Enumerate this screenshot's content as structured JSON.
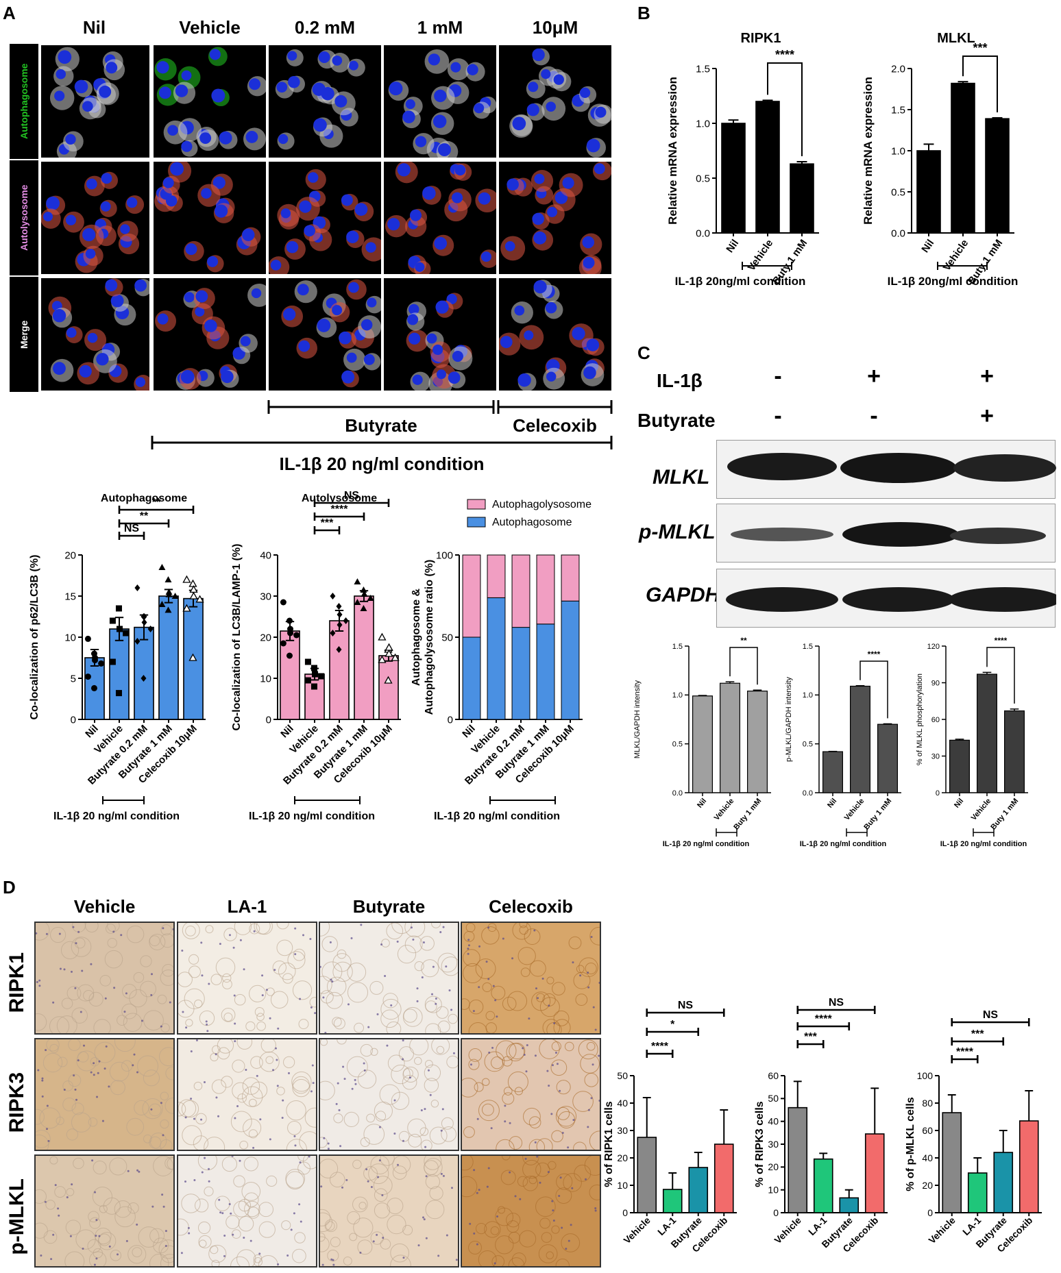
{
  "panels": {
    "a": "A",
    "b": "B",
    "c": "C",
    "d": "D"
  },
  "panelA": {
    "columns": [
      "Nil",
      "Vehicle",
      "0.2 mM",
      "1 mM",
      "10μM"
    ],
    "rows": [
      "Autophagosome",
      "Autolysosome",
      "Merge"
    ],
    "row_colors": [
      "#22c322",
      "#e38ce3",
      "#ffffff"
    ],
    "bracket_butyrate": "Butyrate",
    "bracket_celecoxib": "Celecoxib",
    "bracket_condition": "IL-1β 20 ng/ml condition"
  },
  "panelC": {
    "il1b_label": "IL-1β",
    "butyrate_label": "Butyrate",
    "il1b_signs": [
      "-",
      "+",
      "+"
    ],
    "butyrate_signs": [
      "-",
      "-",
      "+"
    ],
    "blot_labels": [
      "MLKL",
      "p-MLKL",
      "GAPDH"
    ]
  },
  "panelD": {
    "columns": [
      "Vehicle",
      "LA-1",
      "Butyrate",
      "Celecoxib"
    ],
    "rows": [
      "RIPK1",
      "RIPK3",
      "p-MLKL"
    ]
  },
  "chart_data": [
    {
      "id": "A1",
      "type": "bar",
      "title": "Autophagosome",
      "categories": [
        "Nil",
        "Vehicle",
        "Butyrate 0.2 mM",
        "Butyrate 1 mM",
        "Celecoxib 10μM"
      ],
      "values": [
        7.5,
        11.0,
        11.2,
        15.0,
        14.7
      ],
      "errors": [
        1.0,
        1.4,
        1.5,
        0.8,
        1.0
      ],
      "points": [
        [
          9.8,
          8.0,
          7.2,
          6.8,
          5.2,
          3.8,
          7.5
        ],
        [
          12.0,
          13.5,
          11.0,
          10.5,
          7.0,
          3.2,
          11.0
        ],
        [
          16.0,
          12.5,
          11.8,
          11.0,
          9.5,
          5.0,
          12.5
        ],
        [
          18.5,
          17.0,
          15.5,
          15.0,
          14.0,
          13.3,
          15.2
        ],
        [
          17.0,
          16.5,
          15.0,
          14.6,
          13.5,
          7.5,
          15.8
        ]
      ],
      "markers": [
        "circle",
        "square",
        "diamond",
        "triangle",
        "triangle-open"
      ],
      "ylabel": "Co-localization of p62/LC3B (%)",
      "ylim": [
        0,
        20
      ],
      "yticks": [
        0,
        5,
        10,
        15,
        20
      ],
      "color": "#4a90e2",
      "sig": [
        {
          "from": 1,
          "to": 2,
          "label": "NS"
        },
        {
          "from": 1,
          "to": 3,
          "label": "**"
        },
        {
          "from": 1,
          "to": 4,
          "label": "**"
        }
      ],
      "condition": "IL-1β 20 ng/ml condition"
    },
    {
      "id": "A2",
      "type": "bar",
      "title": "Autolysosome",
      "categories": [
        "Nil",
        "Vehicle",
        "Butyrate 0.2 mM",
        "Butyrate 1 mM",
        "Celecoxib 10μM"
      ],
      "values": [
        21.5,
        11.0,
        24.0,
        30.0,
        15.5
      ],
      "errors": [
        2.3,
        1.4,
        2.5,
        1.3,
        1.3
      ],
      "points": [
        [
          28.5,
          24.0,
          21.0,
          20.5,
          18.5,
          15.5,
          22.0
        ],
        [
          14.0,
          12.5,
          11.0,
          10.5,
          9.5,
          8.0,
          11.0
        ],
        [
          30.0,
          27.5,
          25.5,
          24.0,
          21.0,
          17.0,
          23.0
        ],
        [
          33.5,
          31.5,
          30.5,
          29.5,
          28.5,
          27.0,
          30.5
        ],
        [
          20.0,
          17.0,
          16.0,
          15.0,
          14.5,
          9.5,
          17.5
        ]
      ],
      "markers": [
        "circle",
        "square",
        "diamond",
        "triangle",
        "triangle-open"
      ],
      "ylabel": "Co-localization of LC3B/LAMP-1 (%)",
      "ylim": [
        0,
        40
      ],
      "yticks": [
        0,
        10,
        20,
        30,
        40
      ],
      "color": "#f19ec2",
      "sig": [
        {
          "from": 1,
          "to": 2,
          "label": "***"
        },
        {
          "from": 1,
          "to": 3,
          "label": "****"
        },
        {
          "from": 1,
          "to": 4,
          "label": "NS"
        }
      ],
      "condition": "IL-1β 20 ng/ml condition"
    },
    {
      "id": "A3",
      "type": "bar",
      "categories": [
        "Nil",
        "Vehicle",
        "Butyrate 0.2 mM",
        "Butyrate 1 mM",
        "Celecoxib 10μM"
      ],
      "series": [
        {
          "name": "Autophagosome",
          "values": [
            50,
            74,
            56,
            58,
            72
          ],
          "color": "#4a90e2"
        },
        {
          "name": "Autophagolysosome",
          "values": [
            50,
            26,
            44,
            42,
            28
          ],
          "color": "#f19ec2"
        }
      ],
      "ylabel": "Autophagosome & Autophagolysosome ratio (%)",
      "ylim": [
        0,
        100
      ],
      "yticks": [
        0,
        50,
        100
      ],
      "condition": "IL-1β 20 ng/ml condition"
    },
    {
      "id": "B1",
      "type": "bar",
      "title": "RIPK1",
      "categories": [
        "Nil",
        "Vehicle",
        "Buty 1 mM"
      ],
      "values": [
        1.0,
        1.2,
        0.63
      ],
      "errors": [
        0.03,
        0.01,
        0.02
      ],
      "ylabel": "Relative mRNA expression",
      "ylim": [
        0,
        1.5
      ],
      "yticks": [
        0.0,
        0.5,
        1.0,
        1.5
      ],
      "color": "#000000",
      "sig": [
        {
          "from": 1,
          "to": 2,
          "label": "****"
        }
      ],
      "condition": "IL-1β 20ng/ml condition"
    },
    {
      "id": "B2",
      "type": "bar",
      "title": "MLKL",
      "categories": [
        "Nil",
        "Vehicle",
        "Buty 1 mM"
      ],
      "values": [
        1.0,
        1.82,
        1.39
      ],
      "errors": [
        0.08,
        0.02,
        0.01
      ],
      "ylabel": "Relative mRNA expression",
      "ylim": [
        0,
        2.0
      ],
      "yticks": [
        0.0,
        0.5,
        1.0,
        1.5,
        2.0
      ],
      "color": "#000000",
      "sig": [
        {
          "from": 1,
          "to": 2,
          "label": "***"
        }
      ],
      "condition": "IL-1β 20ng/ml condition"
    },
    {
      "id": "C1",
      "type": "bar",
      "categories": [
        "Nil",
        "Vehicle",
        "Buty 1 mM"
      ],
      "values": [
        0.99,
        1.12,
        1.04
      ],
      "errors": [
        0.005,
        0.015,
        0.01
      ],
      "ylabel": "MLKL/GAPDH intensity",
      "ylim": [
        0,
        1.5
      ],
      "yticks": [
        0.0,
        0.5,
        1.0,
        1.5
      ],
      "color": "#a0a0a0",
      "sig": [
        {
          "from": 1,
          "to": 2,
          "label": "**"
        }
      ],
      "condition": "IL-1β 20 ng/ml condition"
    },
    {
      "id": "C2",
      "type": "bar",
      "categories": [
        "Nil",
        "Vehicle",
        "Buty 1 mM"
      ],
      "values": [
        0.42,
        1.09,
        0.7
      ],
      "errors": [
        0.003,
        0.005,
        0.005
      ],
      "ylabel": "p-MLKL/GAPDH intensity",
      "ylim": [
        0,
        1.5
      ],
      "yticks": [
        0.0,
        0.5,
        1.0,
        1.5
      ],
      "color": "#505050",
      "sig": [
        {
          "from": 1,
          "to": 2,
          "label": "****"
        }
      ],
      "condition": "IL-1β 20 ng/ml condition"
    },
    {
      "id": "C3",
      "type": "bar",
      "categories": [
        "Nil",
        "Vehicle",
        "Buty 1 mM"
      ],
      "values": [
        43,
        97,
        67
      ],
      "errors": [
        0.8,
        1.5,
        1.5
      ],
      "ylabel": "% of MLKL phosphorylation",
      "ylim": [
        0,
        120
      ],
      "yticks": [
        0,
        30,
        60,
        90,
        120
      ],
      "color": "#3c3c3c",
      "sig": [
        {
          "from": 1,
          "to": 2,
          "label": "****"
        }
      ],
      "condition": "IL-1β 20 ng/ml condition"
    },
    {
      "id": "D1",
      "type": "bar",
      "categories": [
        "Vehicle",
        "LA-1",
        "Butyrate",
        "Celecoxib"
      ],
      "values": [
        27.5,
        8.5,
        16.5,
        25.0
      ],
      "errors": [
        14.5,
        6.0,
        5.5,
        12.5
      ],
      "colors": [
        "#888888",
        "#1fc67a",
        "#1a93a8",
        "#f26b6b"
      ],
      "ylabel": "% of RIPK1 cells",
      "ylim": [
        0,
        50
      ],
      "yticks": [
        0,
        10,
        20,
        30,
        40,
        50
      ],
      "sig": [
        {
          "from": 0,
          "to": 1,
          "label": "****"
        },
        {
          "from": 0,
          "to": 2,
          "label": "*"
        },
        {
          "from": 0,
          "to": 3,
          "label": "NS"
        }
      ]
    },
    {
      "id": "D2",
      "type": "bar",
      "categories": [
        "Vehicle",
        "LA-1",
        "Butyrate",
        "Celecoxib"
      ],
      "values": [
        46.0,
        23.5,
        6.5,
        34.5
      ],
      "errors": [
        11.5,
        2.5,
        3.5,
        20.0
      ],
      "colors": [
        "#888888",
        "#1fc67a",
        "#1a93a8",
        "#f26b6b"
      ],
      "ylabel": "% of RIPK3 cells",
      "ylim": [
        0,
        60
      ],
      "yticks": [
        0,
        10,
        20,
        30,
        40,
        50,
        60
      ],
      "sig": [
        {
          "from": 0,
          "to": 1,
          "label": "***"
        },
        {
          "from": 0,
          "to": 2,
          "label": "****"
        },
        {
          "from": 0,
          "to": 3,
          "label": "NS"
        }
      ]
    },
    {
      "id": "D3",
      "type": "bar",
      "categories": [
        "Vehicle",
        "LA-1",
        "Butyrate",
        "Celecoxib"
      ],
      "values": [
        73,
        29,
        44,
        67
      ],
      "errors": [
        13,
        11,
        16,
        22
      ],
      "colors": [
        "#888888",
        "#1fc67a",
        "#1a93a8",
        "#f26b6b"
      ],
      "ylabel": "% of p-MLKL cells",
      "ylim": [
        0,
        100
      ],
      "yticks": [
        0,
        20,
        40,
        60,
        80,
        100
      ],
      "sig": [
        {
          "from": 0,
          "to": 1,
          "label": "****"
        },
        {
          "from": 0,
          "to": 2,
          "label": "***"
        },
        {
          "from": 0,
          "to": 3,
          "label": "NS"
        }
      ]
    }
  ]
}
